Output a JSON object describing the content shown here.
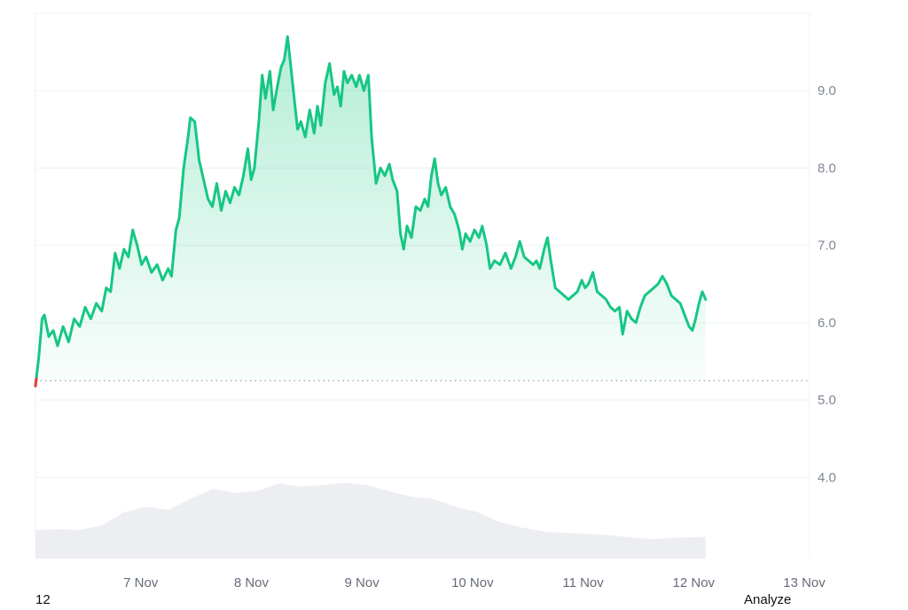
{
  "chart_data": {
    "type": "line",
    "title": "",
    "xlabel": "",
    "ylabel": "",
    "x_tick_labels": [
      "7 Nov",
      "8 Nov",
      "9 Nov",
      "10 Nov",
      "11 Nov",
      "12 Nov",
      "13 Nov"
    ],
    "y_ticks": [
      4.0,
      5.0,
      6.0,
      7.0,
      8.0,
      9.0
    ],
    "y_tick_labels": [
      "4.0",
      "5.0",
      "6.0",
      "7.0",
      "8.0",
      "9.0"
    ],
    "ylim": [
      2.95,
      10.0
    ],
    "x_day_range": [
      6.0,
      13.0
    ],
    "reference_line": {
      "y": 5.25,
      "style": "dotted"
    },
    "grid": true,
    "legend": "none",
    "colors": {
      "line": "#16c784",
      "start_marker": "#ea3943",
      "fill_top": "#16c784",
      "volume": "#eceef2",
      "grid": "#eef0f3",
      "reference": "#9aa0aa"
    },
    "series": [
      {
        "points": [
          [
            6.0,
            5.18
          ],
          [
            6.03,
            5.55
          ],
          [
            6.06,
            6.05
          ],
          [
            6.08,
            6.1
          ],
          [
            6.12,
            5.82
          ],
          [
            6.16,
            5.9
          ],
          [
            6.2,
            5.7
          ],
          [
            6.25,
            5.95
          ],
          [
            6.3,
            5.75
          ],
          [
            6.35,
            6.05
          ],
          [
            6.4,
            5.95
          ],
          [
            6.45,
            6.2
          ],
          [
            6.5,
            6.05
          ],
          [
            6.55,
            6.25
          ],
          [
            6.6,
            6.15
          ],
          [
            6.64,
            6.45
          ],
          [
            6.68,
            6.4
          ],
          [
            6.72,
            6.9
          ],
          [
            6.76,
            6.7
          ],
          [
            6.8,
            6.95
          ],
          [
            6.84,
            6.85
          ],
          [
            6.88,
            7.2
          ],
          [
            6.92,
            7.0
          ],
          [
            6.96,
            6.75
          ],
          [
            7.0,
            6.85
          ],
          [
            7.05,
            6.65
          ],
          [
            7.1,
            6.75
          ],
          [
            7.15,
            6.55
          ],
          [
            7.2,
            6.7
          ],
          [
            7.23,
            6.6
          ],
          [
            7.27,
            7.2
          ],
          [
            7.3,
            7.35
          ],
          [
            7.34,
            8.0
          ],
          [
            7.38,
            8.4
          ],
          [
            7.4,
            8.65
          ],
          [
            7.44,
            8.6
          ],
          [
            7.48,
            8.1
          ],
          [
            7.52,
            7.85
          ],
          [
            7.56,
            7.6
          ],
          [
            7.6,
            7.5
          ],
          [
            7.64,
            7.8
          ],
          [
            7.68,
            7.45
          ],
          [
            7.72,
            7.7
          ],
          [
            7.76,
            7.55
          ],
          [
            7.8,
            7.75
          ],
          [
            7.84,
            7.65
          ],
          [
            7.88,
            7.9
          ],
          [
            7.92,
            8.25
          ],
          [
            7.95,
            7.85
          ],
          [
            7.98,
            8.0
          ],
          [
            8.02,
            8.6
          ],
          [
            8.05,
            9.2
          ],
          [
            8.08,
            8.9
          ],
          [
            8.12,
            9.25
          ],
          [
            8.15,
            8.75
          ],
          [
            8.18,
            9.0
          ],
          [
            8.22,
            9.3
          ],
          [
            8.25,
            9.4
          ],
          [
            8.28,
            9.7
          ],
          [
            8.31,
            9.3
          ],
          [
            8.34,
            8.9
          ],
          [
            8.37,
            8.5
          ],
          [
            8.4,
            8.6
          ],
          [
            8.44,
            8.4
          ],
          [
            8.48,
            8.75
          ],
          [
            8.52,
            8.45
          ],
          [
            8.55,
            8.8
          ],
          [
            8.58,
            8.55
          ],
          [
            8.62,
            9.1
          ],
          [
            8.66,
            9.35
          ],
          [
            8.7,
            8.95
          ],
          [
            8.73,
            9.05
          ],
          [
            8.76,
            8.8
          ],
          [
            8.79,
            9.25
          ],
          [
            8.82,
            9.1
          ],
          [
            8.86,
            9.2
          ],
          [
            8.9,
            9.05
          ],
          [
            8.93,
            9.2
          ],
          [
            8.97,
            9.0
          ],
          [
            9.01,
            9.2
          ],
          [
            9.04,
            8.4
          ],
          [
            9.08,
            7.8
          ],
          [
            9.12,
            8.0
          ],
          [
            9.16,
            7.9
          ],
          [
            9.2,
            8.05
          ],
          [
            9.23,
            7.85
          ],
          [
            9.27,
            7.7
          ],
          [
            9.3,
            7.15
          ],
          [
            9.33,
            6.95
          ],
          [
            9.36,
            7.25
          ],
          [
            9.4,
            7.1
          ],
          [
            9.44,
            7.5
          ],
          [
            9.48,
            7.45
          ],
          [
            9.52,
            7.6
          ],
          [
            9.55,
            7.5
          ],
          [
            9.58,
            7.9
          ],
          [
            9.61,
            8.12
          ],
          [
            9.64,
            7.8
          ],
          [
            9.67,
            7.65
          ],
          [
            9.71,
            7.75
          ],
          [
            9.75,
            7.5
          ],
          [
            9.79,
            7.4
          ],
          [
            9.83,
            7.2
          ],
          [
            9.86,
            6.95
          ],
          [
            9.89,
            7.15
          ],
          [
            9.93,
            7.05
          ],
          [
            9.97,
            7.2
          ],
          [
            10.01,
            7.1
          ],
          [
            10.04,
            7.25
          ],
          [
            10.08,
            7.0
          ],
          [
            10.11,
            6.7
          ],
          [
            10.15,
            6.8
          ],
          [
            10.2,
            6.75
          ],
          [
            10.25,
            6.9
          ],
          [
            10.3,
            6.7
          ],
          [
            10.34,
            6.85
          ],
          [
            10.38,
            7.05
          ],
          [
            10.42,
            6.85
          ],
          [
            10.46,
            6.8
          ],
          [
            10.5,
            6.75
          ],
          [
            10.53,
            6.8
          ],
          [
            10.56,
            6.7
          ],
          [
            10.6,
            6.95
          ],
          [
            10.63,
            7.1
          ],
          [
            10.66,
            6.8
          ],
          [
            10.7,
            6.45
          ],
          [
            10.74,
            6.4
          ],
          [
            10.78,
            6.35
          ],
          [
            10.82,
            6.3
          ],
          [
            10.86,
            6.35
          ],
          [
            10.9,
            6.4
          ],
          [
            10.94,
            6.55
          ],
          [
            10.97,
            6.45
          ],
          [
            11.0,
            6.5
          ],
          [
            11.04,
            6.65
          ],
          [
            11.08,
            6.4
          ],
          [
            11.12,
            6.35
          ],
          [
            11.16,
            6.3
          ],
          [
            11.2,
            6.2
          ],
          [
            11.24,
            6.15
          ],
          [
            11.28,
            6.2
          ],
          [
            11.31,
            5.85
          ],
          [
            11.35,
            6.15
          ],
          [
            11.39,
            6.05
          ],
          [
            11.43,
            6.0
          ],
          [
            11.47,
            6.2
          ],
          [
            11.51,
            6.35
          ],
          [
            11.55,
            6.4
          ],
          [
            11.59,
            6.45
          ],
          [
            11.63,
            6.5
          ],
          [
            11.67,
            6.6
          ],
          [
            11.71,
            6.5
          ],
          [
            11.75,
            6.35
          ],
          [
            11.79,
            6.3
          ],
          [
            11.83,
            6.25
          ],
          [
            11.87,
            6.1
          ],
          [
            11.91,
            5.95
          ],
          [
            11.94,
            5.9
          ],
          [
            11.97,
            6.05
          ],
          [
            12.0,
            6.25
          ],
          [
            12.03,
            6.4
          ],
          [
            12.06,
            6.3
          ]
        ]
      }
    ],
    "volume_series": {
      "points": [
        [
          6.0,
          3.32
        ],
        [
          6.2,
          3.33
        ],
        [
          6.4,
          3.32
        ],
        [
          6.6,
          3.38
        ],
        [
          6.8,
          3.55
        ],
        [
          7.0,
          3.62
        ],
        [
          7.2,
          3.58
        ],
        [
          7.4,
          3.72
        ],
        [
          7.6,
          3.85
        ],
        [
          7.8,
          3.8
        ],
        [
          8.0,
          3.82
        ],
        [
          8.2,
          3.92
        ],
        [
          8.4,
          3.88
        ],
        [
          8.6,
          3.9
        ],
        [
          8.8,
          3.93
        ],
        [
          9.0,
          3.9
        ],
        [
          9.2,
          3.82
        ],
        [
          9.4,
          3.75
        ],
        [
          9.6,
          3.72
        ],
        [
          9.8,
          3.62
        ],
        [
          10.0,
          3.55
        ],
        [
          10.2,
          3.42
        ],
        [
          10.4,
          3.35
        ],
        [
          10.6,
          3.3
        ],
        [
          10.8,
          3.28
        ],
        [
          11.0,
          3.27
        ],
        [
          11.2,
          3.25
        ],
        [
          11.4,
          3.22
        ],
        [
          11.6,
          3.2
        ],
        [
          11.8,
          3.22
        ],
        [
          12.06,
          3.23
        ]
      ]
    }
  },
  "footer": {
    "left_text": "12",
    "right_text": "Analyze"
  }
}
